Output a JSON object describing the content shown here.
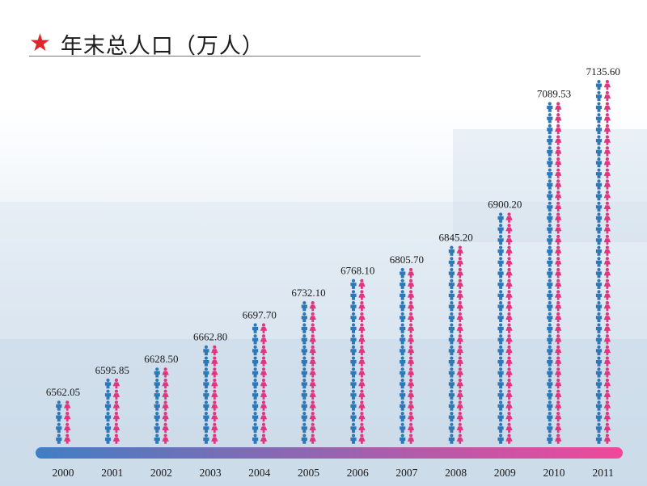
{
  "title": {
    "icon": "star-icon",
    "text": "年末总人口（万人）"
  },
  "colors": {
    "male": "#2e78b8",
    "female": "#e0367f",
    "title_star": "#e0252b",
    "bar_start": "#3f7fc6",
    "bar_end": "#f0489a"
  },
  "chart_data": {
    "type": "bar",
    "title": "年末总人口（万人）",
    "xlabel": "",
    "ylabel": "",
    "categories": [
      "2000",
      "2001",
      "2002",
      "2003",
      "2004",
      "2005",
      "2006",
      "2007",
      "2008",
      "2009",
      "2010",
      "2011"
    ],
    "values": [
      6562.05,
      6595.85,
      6628.5,
      6662.8,
      6697.7,
      6732.1,
      6768.1,
      6805.7,
      6845.2,
      6900.2,
      7089.53,
      7135.6
    ],
    "value_labels": [
      "6562.05",
      "6595.85",
      "6628.50",
      "6662.80",
      "6697.70",
      "6732.10",
      "6768.10",
      "6805.70",
      "6845.20",
      "6900.20",
      "7089.53",
      "7135.60"
    ],
    "icon_series": [
      "male-figure-icon",
      "female-figure-icon"
    ],
    "grid": false,
    "legend": "none"
  }
}
